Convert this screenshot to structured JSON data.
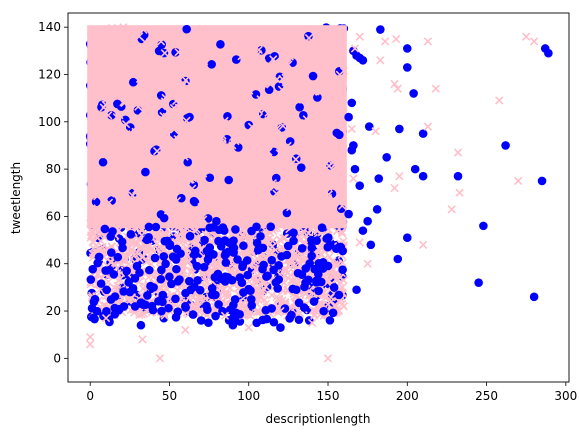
{
  "chart_data": {
    "type": "scatter",
    "title": "",
    "xlabel": "descriptionlength",
    "ylabel": "tweetlength",
    "xlim": [
      -14,
      302
    ],
    "ylim": [
      -10,
      146
    ],
    "xticks": [
      0,
      50,
      100,
      150,
      200,
      250,
      300
    ],
    "yticks": [
      0,
      20,
      40,
      60,
      80,
      100,
      120,
      140
    ],
    "grid": false,
    "legend": null,
    "dense_region": {
      "series_colors": [
        "#0000ff",
        "#ffc0cb"
      ],
      "x_range": [
        0,
        160
      ],
      "y_range": [
        14,
        140
      ],
      "note": "overplotted mass of points"
    },
    "series": [
      {
        "marker": "circle",
        "color": "#0000ff",
        "points": [
          [
            183,
            139
          ],
          [
            200,
            131
          ],
          [
            166,
            130
          ],
          [
            168,
            128
          ],
          [
            170,
            127
          ],
          [
            172,
            126
          ],
          [
            287,
            131
          ],
          [
            289,
            129
          ],
          [
            200,
            123
          ],
          [
            204,
            112
          ],
          [
            165,
            108
          ],
          [
            163,
            102
          ],
          [
            176,
            98
          ],
          [
            195,
            97
          ],
          [
            210,
            95
          ],
          [
            166,
            90
          ],
          [
            262,
            90
          ],
          [
            165,
            88
          ],
          [
            187,
            85
          ],
          [
            205,
            80
          ],
          [
            167,
            80
          ],
          [
            210,
            77
          ],
          [
            232,
            77
          ],
          [
            182,
            76
          ],
          [
            285,
            75
          ],
          [
            170,
            73
          ],
          [
            181,
            63
          ],
          [
            163,
            61
          ],
          [
            175,
            58
          ],
          [
            248,
            56
          ],
          [
            172,
            54
          ],
          [
            200,
            51
          ],
          [
            177,
            48
          ],
          [
            194,
            42
          ],
          [
            168,
            29
          ],
          [
            245,
            32
          ],
          [
            280,
            26
          ],
          [
            130,
            29
          ],
          [
            90,
            14
          ],
          [
            105,
            15
          ],
          [
            120,
            13
          ],
          [
            32,
            14
          ],
          [
            70,
            16
          ],
          [
            45,
            20
          ],
          [
            60,
            22
          ],
          [
            3,
            25
          ],
          [
            25,
            28
          ],
          [
            40,
            30
          ]
        ]
      },
      {
        "marker": "x",
        "color": "#ffc0cb",
        "points": [
          [
            170,
            136
          ],
          [
            186,
            134
          ],
          [
            193,
            135
          ],
          [
            213,
            134
          ],
          [
            275,
            136
          ],
          [
            280,
            134
          ],
          [
            167,
            131
          ],
          [
            183,
            126
          ],
          [
            192,
            116
          ],
          [
            194,
            114
          ],
          [
            218,
            114
          ],
          [
            258,
            109
          ],
          [
            165,
            97
          ],
          [
            213,
            98
          ],
          [
            232,
            87
          ],
          [
            180,
            96
          ],
          [
            270,
            75
          ],
          [
            195,
            77
          ],
          [
            192,
            72
          ],
          [
            166,
            76
          ],
          [
            233,
            70
          ],
          [
            228,
            63
          ],
          [
            170,
            49
          ],
          [
            210,
            48
          ],
          [
            175,
            40
          ],
          [
            150,
            0
          ],
          [
            44,
            0
          ],
          [
            0,
            6
          ],
          [
            0,
            9
          ],
          [
            33,
            8
          ],
          [
            100,
            13
          ],
          [
            140,
            15
          ],
          [
            120,
            20
          ],
          [
            160,
            22
          ],
          [
            10,
            17
          ],
          [
            60,
            12
          ],
          [
            85,
            18
          ]
        ]
      }
    ]
  }
}
